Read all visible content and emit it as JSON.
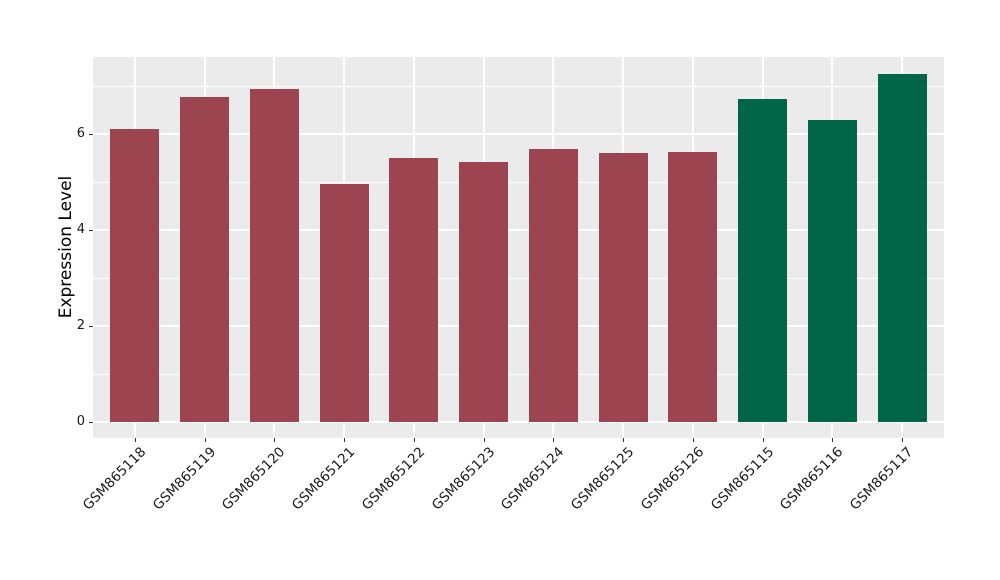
{
  "chart_data": {
    "type": "bar",
    "title": "",
    "xlabel": "",
    "ylabel": "Expression Level",
    "categories": [
      "GSM865118",
      "GSM865119",
      "GSM865120",
      "GSM865121",
      "GSM865122",
      "GSM865123",
      "GSM865124",
      "GSM865125",
      "GSM865126",
      "GSM865115",
      "GSM865116",
      "GSM865117"
    ],
    "values": [
      6.1,
      6.77,
      6.94,
      4.96,
      5.5,
      5.41,
      5.69,
      5.6,
      5.63,
      6.73,
      6.29,
      7.26
    ],
    "bar_colors": [
      "#9C4450",
      "#9C4450",
      "#9C4450",
      "#9C4450",
      "#9C4450",
      "#9C4450",
      "#9C4450",
      "#9C4450",
      "#9C4450",
      "#006647",
      "#006647",
      "#006647"
    ],
    "group_colors": {
      "maroon_group": "#9C4450",
      "green_group": "#006647"
    },
    "y_major_ticks": [
      0,
      2,
      4,
      6
    ],
    "y_minor_ticks": [
      1,
      3,
      5,
      7
    ],
    "ylim": [
      -0.33,
      7.6
    ],
    "panel_background": "#EBEBEB",
    "grid_color": "#FFFFFF",
    "grid": "on",
    "legend": "none"
  }
}
